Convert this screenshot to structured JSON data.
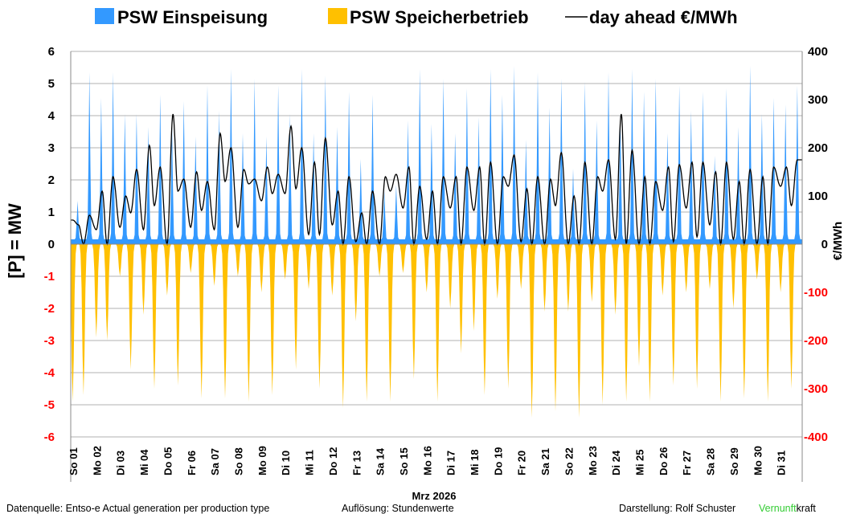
{
  "chart_data": {
    "type": "area",
    "legend": {
      "placement": "top",
      "entries": [
        "PSW Einspeisung",
        "PSW Speicherbetrieb",
        "day ahead €/MWh"
      ]
    },
    "colors": {
      "einspeisung": "#3399ff",
      "speicherbetrieb": "#ffc000",
      "price": "#000000",
      "negative_ticks": "#ff0000",
      "grid": "#b0b0b0",
      "brand_green": "#33cc33"
    },
    "ylabel_left": "[P]  = MW",
    "ylabel_right": "€/MWh",
    "xlabel": "Mrz 2026",
    "ylim_left": [
      -6,
      6
    ],
    "ylim_right": [
      -400,
      400
    ],
    "yticks_left": [
      "6",
      "5",
      "4",
      "3",
      "2",
      "1",
      "0",
      "-1",
      "-2",
      "-3",
      "-4",
      "-5",
      "-6"
    ],
    "yticks_right": [
      "400",
      "300",
      "200",
      "100",
      "0",
      "-100",
      "-200",
      "-300",
      "-400"
    ],
    "grid": true,
    "resolution": "hourly",
    "x_categories": [
      "So 01",
      "Mo 02",
      "Di 03",
      "Mi 04",
      "Do 05",
      "Fr 06",
      "Sa 07",
      "So 08",
      "Mo 09",
      "Di 10",
      "Mi 11",
      "Do 12",
      "Fr 13",
      "Sa 14",
      "So 15",
      "Mo 16",
      "Di 17",
      "Mi 18",
      "Do 19",
      "Fr 20",
      "Sa 21",
      "So 22",
      "Mo 23",
      "Di 24",
      "Mi 25",
      "Do 26",
      "Fr 27",
      "Sa 28",
      "So 29",
      "Mo 30",
      "Di 31"
    ],
    "daily_einspeisung_morning_peak_MW": [
      1.2,
      4.4,
      3.9,
      3.5,
      3.6,
      3.2,
      4.0,
      3.3,
      3.2,
      3.9,
      3.3,
      3.5,
      2.5,
      1.5,
      3.7,
      3.6,
      3.3,
      3.8,
      4.5,
      3.1,
      4.1,
      2.2,
      3.7,
      3.9,
      4.6,
      3.3,
      4.0,
      2.6,
      3.5,
      3.9,
      4.2
    ],
    "daily_einspeisung_evening_peak_MW": [
      5.2,
      5.2,
      3.9,
      4.5,
      4.3,
      4.8,
      5.3,
      5.0,
      4.8,
      5.3,
      5.1,
      4.6,
      4.5,
      1.7,
      5.3,
      5.0,
      4.7,
      5.3,
      5.4,
      5.2,
      5.0,
      4.9,
      5.2,
      5.3,
      5.0,
      4.8,
      4.6,
      4.7,
      5.4,
      4.4,
      4.8
    ],
    "daily_speicher_night_min_MW": [
      -4.9,
      -2.9,
      -1.0,
      -2.2,
      -1.6,
      -0.9,
      -1.3,
      -1.0,
      -1.5,
      -1.1,
      -1.4,
      -1.6,
      -2.4,
      -1.0,
      -0.9,
      -1.5,
      -2.0,
      -2.7,
      -1.7,
      -1.4,
      -2.1,
      -2.1,
      -1.8,
      -2.2,
      -3.8,
      -1.6,
      -1.5,
      -1.4,
      -2.0,
      -1.1,
      -1.5
    ],
    "daily_speicher_midday_min_MW": [
      -4.7,
      -3.0,
      -3.9,
      -4.5,
      -4.4,
      -4.8,
      -4.8,
      -4.9,
      -4.7,
      -3.9,
      -4.5,
      -5.1,
      -4.9,
      -4.9,
      -4.2,
      -4.9,
      -3.4,
      -4.7,
      -4.5,
      -5.4,
      -5.2,
      -5.4,
      -5.0,
      -4.9,
      -4.9,
      -4.4,
      -4.5,
      -4.9,
      -4.8,
      -4.9,
      -4.5
    ],
    "daily_price_night": [
      50,
      30,
      35,
      30,
      0,
      35,
      30,
      35,
      90,
      105,
      20,
      40,
      5,
      0,
      75,
      10,
      75,
      70,
      0,
      5,
      0,
      0,
      0,
      10,
      0,
      70,
      75,
      40,
      10,
      0,
      120
    ],
    "daily_price_morning_peak": [
      40,
      110,
      100,
      205,
      270,
      150,
      230,
      155,
      160,
      245,
      170,
      110,
      65,
      140,
      160,
      110,
      140,
      160,
      140,
      115,
      135,
      100,
      140,
      270,
      140,
      160,
      170,
      150,
      130,
      140,
      160
    ],
    "daily_price_midday": [
      0,
      0,
      65,
      80,
      110,
      70,
      130,
      125,
      105,
      115,
      20,
      0,
      0,
      110,
      0,
      0,
      0,
      0,
      120,
      0,
      80,
      0,
      110,
      0,
      0,
      5,
      15,
      0,
      0,
      0,
      80
    ],
    "daily_price_evening_peak": [
      60,
      140,
      155,
      160,
      135,
      130,
      200,
      135,
      145,
      200,
      220,
      140,
      110,
      145,
      120,
      140,
      160,
      170,
      185,
      140,
      190,
      170,
      175,
      195,
      130,
      165,
      170,
      170,
      155,
      160,
      175
    ]
  },
  "footer": {
    "source": "Datenquelle: Entso-e  Actual generation per production type",
    "resolution": "Auflösung: Stundenwerte",
    "author": "Darstellung:  Rolf Schuster",
    "brand_green": "Vernunft",
    "brand_black": "kraft"
  }
}
